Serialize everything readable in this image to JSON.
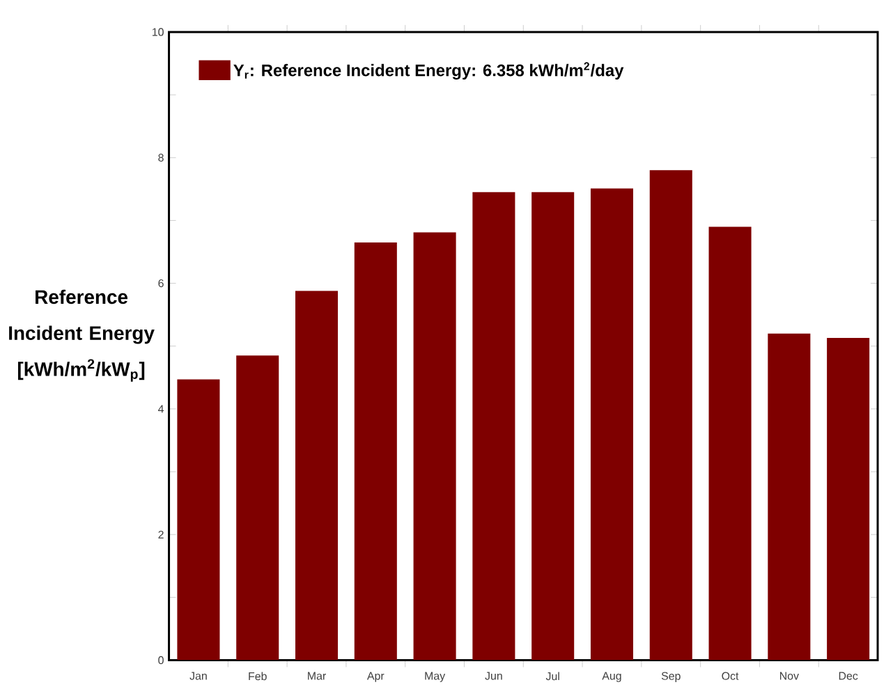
{
  "chart_data": {
    "type": "bar",
    "ylabel": "Reference Incident Energy [kWh/m$^{2}$/kW$_{p}$]",
    "categories": [
      "Jan",
      "Feb",
      "Mar",
      "Apr",
      "May",
      "Jun",
      "Jul",
      "Aug",
      "Sep",
      "Oct",
      "Nov",
      "Dec"
    ],
    "series": [
      {
        "name": "Y$_{r}$: Reference Incident Energy: 6.358 kWh/m$^{2}$/day",
        "color": "#7f0000",
        "values": [
          4.47,
          4.85,
          5.88,
          6.65,
          6.81,
          7.45,
          7.45,
          7.51,
          7.8,
          6.9,
          5.2,
          5.13
        ]
      }
    ],
    "ylim": [
      0,
      10
    ],
    "yticks": [
      0,
      2,
      4,
      6,
      8,
      10
    ],
    "grid": false,
    "legend": "top left"
  }
}
